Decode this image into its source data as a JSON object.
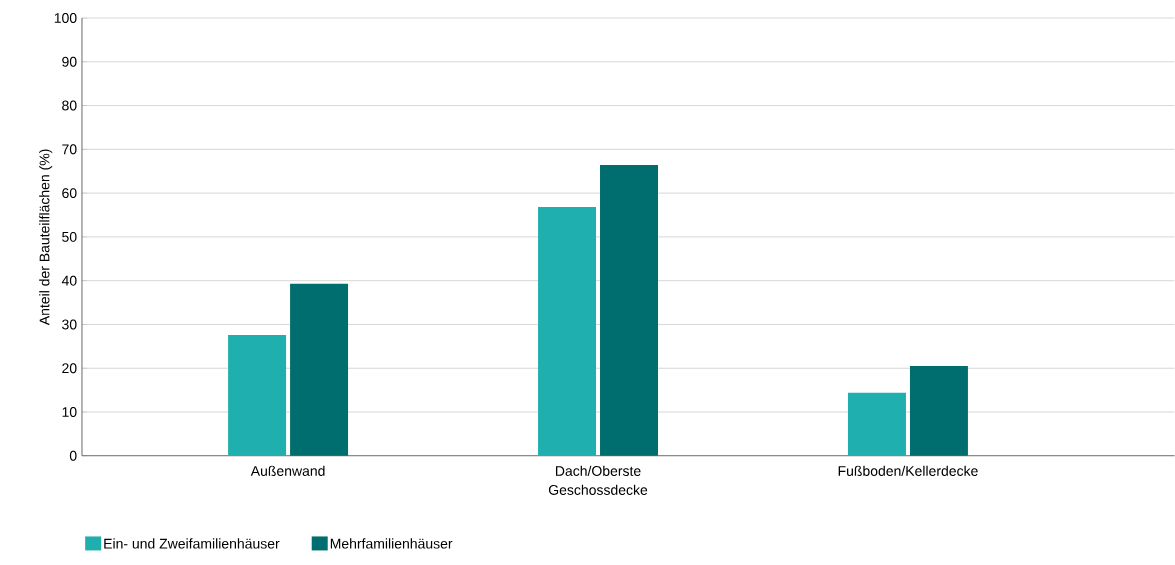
{
  "chart_data": {
    "type": "bar",
    "ylabel": "Anteil der Bauteilflächen (%)",
    "categories": [
      "Außenwand",
      "Dach/Oberste Geschossdecke",
      "Fußboden/Kellerdecke"
    ],
    "series": [
      {
        "name": "Ein- und Zweifamilienhäuser",
        "color": "#20afaf",
        "values": [
          27.6,
          56.8,
          14.4
        ]
      },
      {
        "name": "Mehrfamilienhäuser",
        "color": "#006e6e",
        "values": [
          39.3,
          66.4,
          20.5
        ]
      }
    ],
    "ylim": [
      0,
      100
    ],
    "yticks": [
      0,
      10,
      20,
      30,
      40,
      50,
      60,
      70,
      80,
      90,
      100
    ],
    "grid": "y",
    "legend": "bottom"
  }
}
